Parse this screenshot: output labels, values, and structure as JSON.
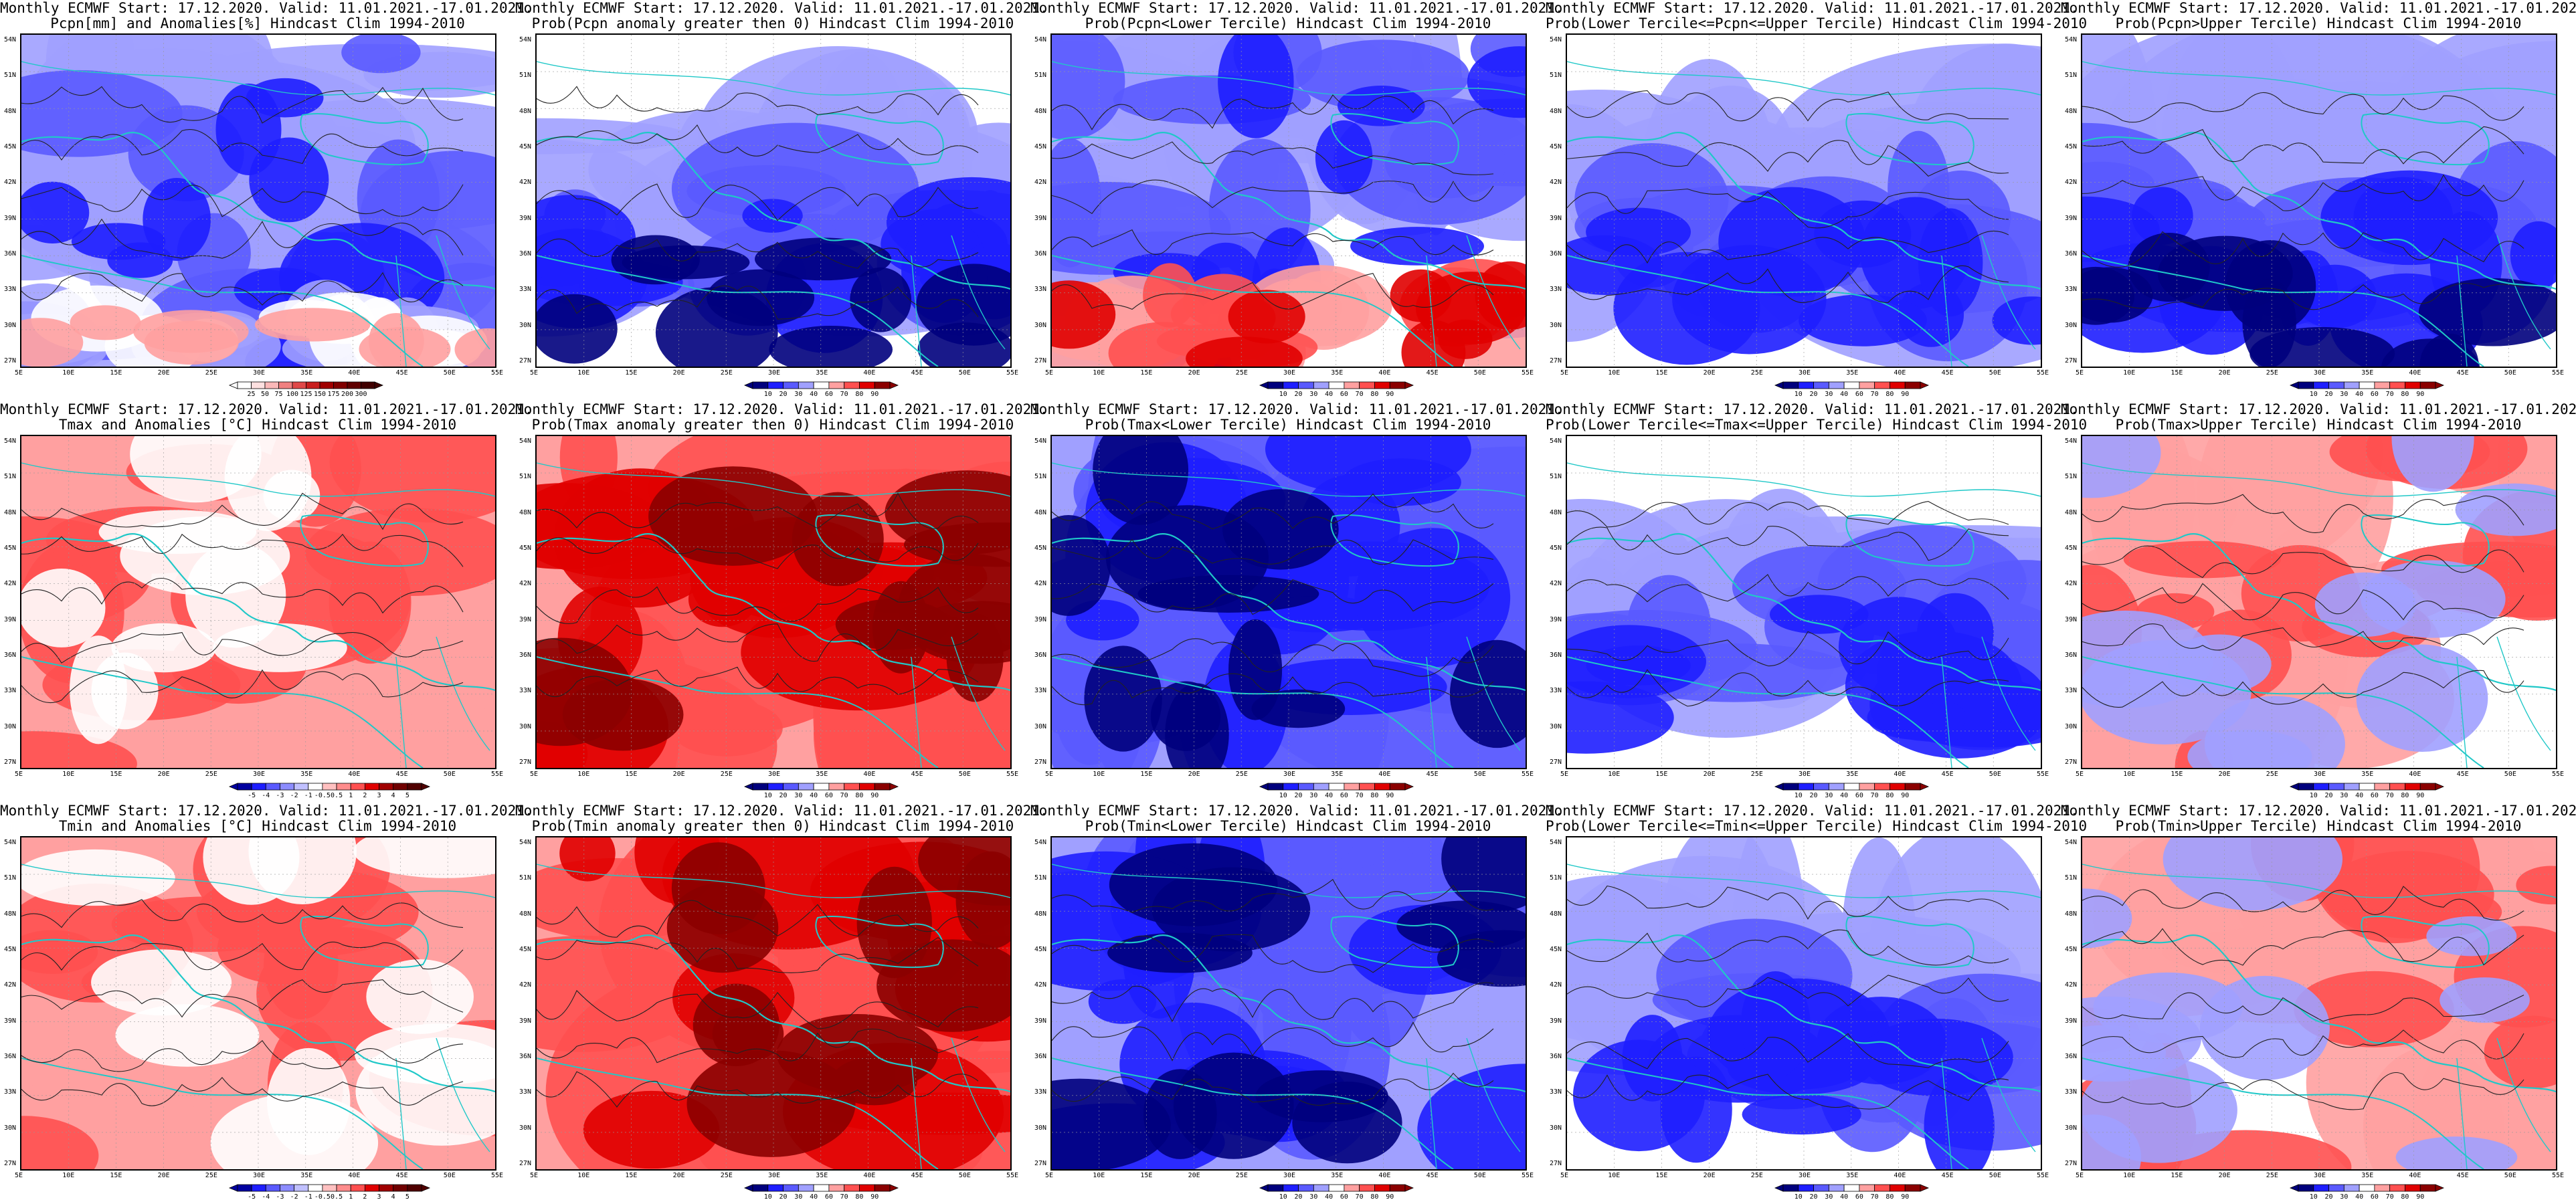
{
  "title_line1": "Monthly ECMWF Start: 17.12.2020. Valid: 11.01.2021.-17.01.2021.",
  "lat_labels": [
    "54N",
    "51N",
    "48N",
    "45N",
    "42N",
    "39N",
    "36N",
    "33N",
    "30N",
    "27N"
  ],
  "lon_labels": [
    "5E",
    "10E",
    "15E",
    "20E",
    "25E",
    "30E",
    "35E",
    "40E",
    "45E",
    "50E",
    "55E"
  ],
  "colorbars": {
    "precip": [
      "25",
      "50",
      "75",
      "100",
      "125",
      "150",
      "175",
      "200",
      "300"
    ],
    "prob": [
      "10",
      "20",
      "30",
      "40",
      "60",
      "70",
      "80",
      "90"
    ],
    "temp": [
      "-5",
      "-4",
      "-3",
      "-2",
      "-1",
      "-0.5",
      "0.5",
      "1",
      "2",
      "3",
      "4",
      "5"
    ]
  },
  "colors": {
    "blue_dark": "#00007d",
    "blue": "#1e1eff",
    "blue_mid": "#5a5aff",
    "blue_light": "#a0a0ff",
    "white": "#ffffff",
    "red_light": "#ffa0a0",
    "red_mid": "#ff5050",
    "red": "#e00000",
    "red_dark": "#8b0000",
    "coast": "#20c8c8",
    "contour": "#222222"
  },
  "panels": [
    {
      "row": 0,
      "col": 0,
      "line2": "Pcpn[mm] and Anomalies[%] Hindcast Clim 1994-2010",
      "scale": "precip",
      "palette": "precip"
    },
    {
      "row": 0,
      "col": 1,
      "line2": "Prob(Pcpn anomaly greater then 0) Hindcast Clim 1994-2010",
      "scale": "prob",
      "palette": "blue"
    },
    {
      "row": 0,
      "col": 2,
      "line2": "Prob(Pcpn<Lower Tercile) Hindcast Clim 1994-2010",
      "scale": "prob",
      "palette": "blueRedSouth"
    },
    {
      "row": 0,
      "col": 3,
      "line2": "Prob(Lower Tercile<=Pcpn<=Upper Tercile) Hindcast Clim 1994-2010",
      "scale": "prob",
      "palette": "blueMix"
    },
    {
      "row": 0,
      "col": 4,
      "line2": "Prob(Pcpn>Upper Tercile) Hindcast Clim 1994-2010",
      "scale": "prob",
      "palette": "blue"
    },
    {
      "row": 1,
      "col": 0,
      "line2": "Tmax and Anomalies [°C] Hindcast Clim 1994-2010",
      "scale": "temp",
      "palette": "red"
    },
    {
      "row": 1,
      "col": 1,
      "line2": "Prob(Tmax anomaly greater then 0) Hindcast Clim 1994-2010",
      "scale": "prob",
      "palette": "redStrong"
    },
    {
      "row": 1,
      "col": 2,
      "line2": "Prob(Tmax<Lower Tercile) Hindcast Clim 1994-2010",
      "scale": "prob",
      "palette": "blueStrong"
    },
    {
      "row": 1,
      "col": 3,
      "line2": "Prob(Lower Tercile<=Tmax<=Upper Tercile) Hindcast Clim 1994-2010",
      "scale": "prob",
      "palette": "blueMix"
    },
    {
      "row": 1,
      "col": 4,
      "line2": "Prob(Tmax>Upper Tercile) Hindcast Clim 1994-2010",
      "scale": "prob",
      "palette": "whiteRed"
    },
    {
      "row": 2,
      "col": 0,
      "line2": "Tmin and Anomalies [°C] Hindcast Clim 1994-2010",
      "scale": "temp",
      "palette": "red"
    },
    {
      "row": 2,
      "col": 1,
      "line2": "Prob(Tmin anomaly greater then 0) Hindcast Clim 1994-2010",
      "scale": "prob",
      "palette": "redStrong"
    },
    {
      "row": 2,
      "col": 2,
      "line2": "Prob(Tmin<Lower Tercile) Hindcast Clim 1994-2010",
      "scale": "prob",
      "palette": "blueStrong"
    },
    {
      "row": 2,
      "col": 3,
      "line2": "Prob(Lower Tercile<=Tmin<=Upper Tercile) Hindcast Clim 1994-2010",
      "scale": "prob",
      "palette": "blueMix"
    },
    {
      "row": 2,
      "col": 4,
      "line2": "Prob(Tmin>Upper Tercile) Hindcast Clim 1994-2010",
      "scale": "prob",
      "palette": "whiteRed"
    }
  ]
}
